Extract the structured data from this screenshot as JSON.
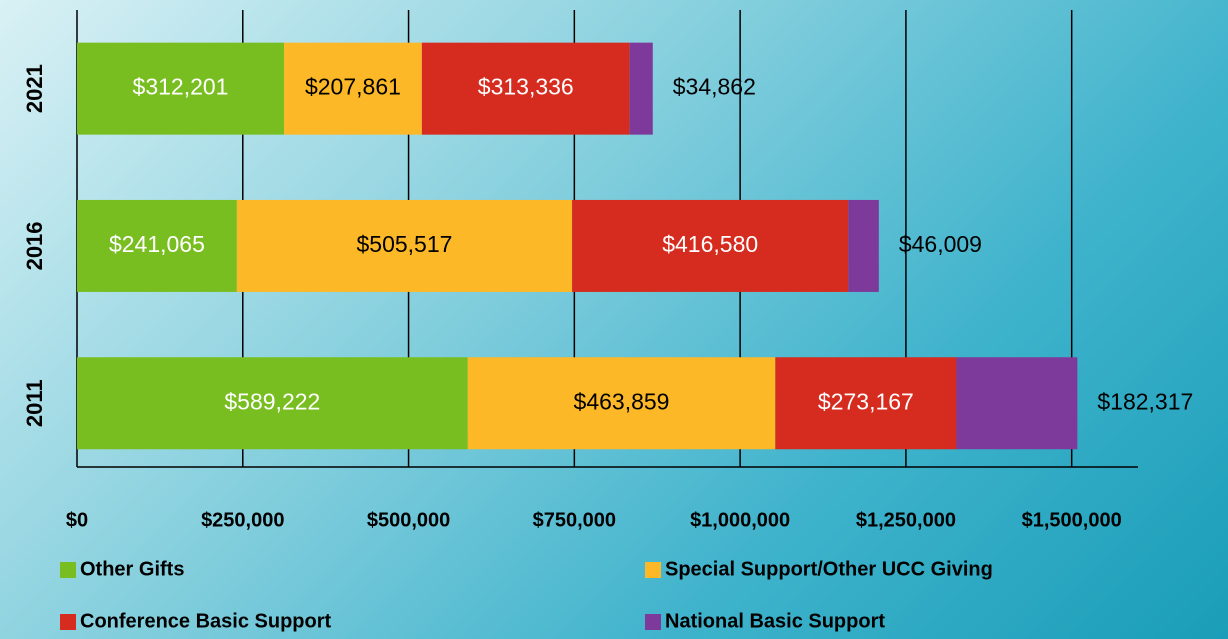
{
  "chart_data": {
    "type": "stacked_barh",
    "categories": [
      "2021",
      "2016",
      "2011"
    ],
    "series": [
      {
        "name": "Other Gifts",
        "color": "#78be20",
        "label_color": "#ffffff",
        "values": [
          312201,
          241065,
          589222
        ],
        "value_labels": [
          "$312,201",
          "$241,065",
          "$589,222"
        ]
      },
      {
        "name": "Special Support/Other UCC Giving",
        "color": "#fdb827",
        "label_color": "#000000",
        "values": [
          207861,
          505517,
          463859
        ],
        "value_labels": [
          "$207,861",
          "$505,517",
          "$463,859"
        ]
      },
      {
        "name": "Conference Basic Support",
        "color": "#d62b1f",
        "label_color": "#ffffff",
        "values": [
          313336,
          416580,
          273167
        ],
        "value_labels": [
          "$313,336",
          "$416,580",
          "$273,167"
        ]
      },
      {
        "name": "National Basic Support",
        "color": "#7e3a9a",
        "label_color": "#000000",
        "values": [
          34862,
          46009,
          182317
        ],
        "value_labels": [
          "$34,862",
          "$46,009",
          "$182,317"
        ]
      }
    ],
    "xlim": [
      0,
      1600000
    ],
    "xticks": [
      {
        "value": 0,
        "label": "$0"
      },
      {
        "value": 250000,
        "label": "$250,000"
      },
      {
        "value": 500000,
        "label": "$500,000"
      },
      {
        "value": 750000,
        "label": "$750,000"
      },
      {
        "value": 1000000,
        "label": "$1,000,000"
      },
      {
        "value": 1250000,
        "label": "$1,250,000"
      },
      {
        "value": 1500000,
        "label": "$1,500,000"
      }
    ],
    "grid": true
  }
}
